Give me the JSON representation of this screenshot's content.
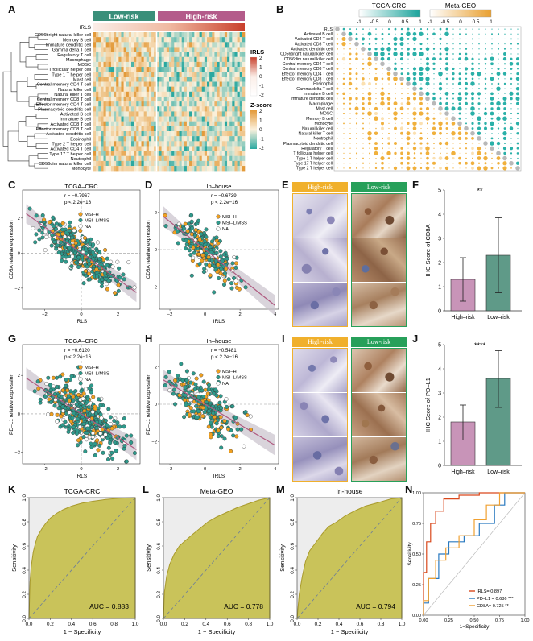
{
  "panels": [
    "A",
    "B",
    "C",
    "D",
    "E",
    "F",
    "G",
    "H",
    "I",
    "J",
    "K",
    "L",
    "M",
    "N"
  ],
  "heatmap": {
    "group_labels": [
      "Low-risk",
      "High-risk"
    ],
    "irls_row_label": "IRLS",
    "rows": [
      "CD56bright natural killer cell",
      "Memory B cell",
      "Immature dendritic cell",
      "Gamma delta T cell",
      "Regulatory T cell",
      "Macrophage",
      "MDSC",
      "T follicular helper cell",
      "Type 1 T helper cell",
      "Mast cell",
      "Central memory CD4 T cell",
      "Natural killer cell",
      "Natural killer T cell",
      "Central memory CD8 T cell",
      "Effector memory CD4 T cell",
      "Plasmacytoid dendritic cell",
      "Activated B cell",
      "Immature B cell",
      "Activated CD8 T cell",
      "Effector memory CD8 T cell",
      "Activated dendritic cell",
      "Eosinophil",
      "Type 2 T helper cell",
      "Activated CD4 T cell",
      "Type 17 T helper cell",
      "Neutrophil",
      "CD56dim natural killer cell",
      "Monocyte"
    ],
    "legend_irls": {
      "title": "IRLS",
      "ticks": [
        "2",
        "1",
        "0",
        "-1",
        "-2"
      ]
    },
    "legend_z": {
      "title": "Z-score",
      "ticks": [
        "2",
        "1",
        "0",
        "-1",
        "-2"
      ]
    },
    "colors": {
      "low": "#2aa8a0",
      "high": "#e07b2c",
      "low_group": "#3a8f7a",
      "high_group": "#b45b8a"
    }
  },
  "corrplot": {
    "legend_titles": [
      "TCGA-CRC",
      "Meta-GEO"
    ],
    "legend_ticks_tcga": [
      "-1",
      "-0.5",
      "0",
      "0.5",
      "1"
    ],
    "legend_ticks_geo": [
      "-1",
      "-0.5",
      "0",
      "0.5",
      "1"
    ],
    "rows": [
      "IRLS",
      "Activated B cell",
      "Activated CD4 T cell",
      "Activated CD8 T cell",
      "Activated dendritic cell",
      "CD56bright natural killer cell",
      "CD56dim natural killer cell",
      "Central memory CD4 T cell",
      "Central memory CD8 T cell",
      "Effector memory CD4 T cell",
      "Effector memory CD8 T cell",
      "Eosinophil",
      "Gamma delta T cell",
      "Immature  B cell",
      "Immature dendritic cell",
      "Macrophage",
      "Mast cell",
      "MDSC",
      "Memory B cell",
      "Monocyte",
      "Natural killer cell",
      "Natural killer T cell",
      "Neutrophil",
      "Plasmacytoid dendritic cell",
      "Regulatory T cell",
      "T follicular helper cell",
      "Type 1 T helper cell",
      "Type 17 T helper cell",
      "Type 2 T helper cell"
    ],
    "colors": {
      "tcga": "#2ab0a8",
      "geo": "#f0b03c",
      "diag": "#b8b8b8"
    }
  },
  "scatter_C": {
    "title": "TCGA–CRC",
    "r_text": "r = −0.7967",
    "p_text": "p < 2.2e−16",
    "xlabel": "IRLS",
    "ylabel": "CD8A relative expression",
    "legend": [
      "MSI–H",
      "MSI–L/MSS",
      "NA"
    ]
  },
  "scatter_D": {
    "title": "In–house",
    "r_text": "r = −0.6739",
    "p_text": "p < 2.2e−16",
    "xlabel": "IRLS",
    "ylabel": "CD8A relative expression",
    "legend": [
      "MSI–H",
      "MSI–L/MSS",
      "NA"
    ]
  },
  "scatter_G": {
    "title": "TCGA–CRC",
    "r_text": "r = −0.6120",
    "p_text": "p < 2.2e−16",
    "xlabel": "IRLS",
    "ylabel": "PD–L1 relative expression",
    "legend": [
      "MSI–H",
      "MSI–L/MSS",
      "NA"
    ]
  },
  "scatter_H": {
    "title": "In–house",
    "r_text": "r = −0.5481",
    "p_text": "p < 2.2e−16",
    "xlabel": "IRLS",
    "ylabel": "PD–L1 relative expression",
    "legend": [
      "MSI–H",
      "MSI–L/MSS",
      "NA"
    ]
  },
  "ihc_E": {
    "labels": [
      "High-risk",
      "Low-risk"
    ]
  },
  "ihc_I": {
    "labels": [
      "High-risk",
      "Low-risk"
    ]
  },
  "chart_data": [
    {
      "panel": "F",
      "type": "bar",
      "categories": [
        "High–risk",
        "Low–risk"
      ],
      "values": [
        1.3,
        2.3
      ],
      "error_high": [
        2.2,
        3.85
      ],
      "error_low": [
        0.4,
        0.75
      ],
      "ylabel": "IHC Score of CD8A",
      "ylim": [
        0,
        5
      ],
      "yticks": [
        "0",
        "1",
        "2",
        "3",
        "4",
        "5"
      ],
      "significance": "**",
      "colors": [
        "#c894b8",
        "#5f9a88"
      ]
    },
    {
      "panel": "J",
      "type": "bar",
      "categories": [
        "High–risk",
        "Low–risk"
      ],
      "values": [
        1.8,
        3.6
      ],
      "error_high": [
        2.5,
        4.75
      ],
      "error_low": [
        1.05,
        2.4
      ],
      "ylabel": "IHC Score of PD–L1",
      "ylim": [
        0,
        5
      ],
      "yticks": [
        "0",
        "1",
        "2",
        "3",
        "4",
        "5"
      ],
      "significance": "****",
      "colors": [
        "#c894b8",
        "#5f9a88"
      ]
    },
    {
      "panel": "K",
      "type": "area",
      "title": "TCGA-CRC",
      "xlabel": "1 − Specificity",
      "ylabel": "Sensitivity",
      "auc_text": "AUC = 0.883",
      "x": [
        0,
        0.01,
        0.02,
        0.04,
        0.06,
        0.08,
        0.12,
        0.16,
        0.2,
        0.26,
        0.32,
        0.4,
        0.5,
        0.6,
        0.72,
        0.85,
        1
      ],
      "y": [
        0,
        0.3,
        0.42,
        0.55,
        0.62,
        0.68,
        0.74,
        0.79,
        0.83,
        0.87,
        0.9,
        0.93,
        0.955,
        0.97,
        0.985,
        0.995,
        1
      ],
      "xticks": [
        "0.0",
        "0.2",
        "0.4",
        "0.6",
        "0.8",
        "1.0"
      ],
      "yticks": [
        "0.0",
        "0.2",
        "0.4",
        "0.6",
        "0.8",
        "1.0"
      ]
    },
    {
      "panel": "L",
      "type": "area",
      "title": "Meta-GEO",
      "xlabel": "1 − Specificity",
      "ylabel": "Sensitivity",
      "auc_text": "AUC = 0.778",
      "x": [
        0,
        0.01,
        0.03,
        0.06,
        0.1,
        0.15,
        0.2,
        0.28,
        0.35,
        0.42,
        0.5,
        0.6,
        0.7,
        0.8,
        0.9,
        1
      ],
      "y": [
        0,
        0.22,
        0.35,
        0.45,
        0.53,
        0.6,
        0.64,
        0.7,
        0.75,
        0.8,
        0.84,
        0.88,
        0.92,
        0.95,
        0.98,
        1
      ],
      "xticks": [
        "0.0",
        "0.2",
        "0.4",
        "0.6",
        "0.8",
        "1.0"
      ],
      "yticks": [
        "0.0",
        "0.2",
        "0.4",
        "0.6",
        "0.8",
        "1.0"
      ]
    },
    {
      "panel": "M",
      "type": "area",
      "title": "In-house",
      "xlabel": "1 − Specificity",
      "ylabel": "Sensitivity",
      "auc_text": "AUC = 0.794",
      "x": [
        0,
        0.02,
        0.05,
        0.08,
        0.12,
        0.18,
        0.24,
        0.3,
        0.38,
        0.46,
        0.55,
        0.65,
        0.78,
        0.9,
        1
      ],
      "y": [
        0,
        0.2,
        0.35,
        0.47,
        0.56,
        0.63,
        0.7,
        0.76,
        0.8,
        0.85,
        0.89,
        0.93,
        0.96,
        0.99,
        1
      ],
      "xticks": [
        "0.0",
        "0.2",
        "0.4",
        "0.6",
        "0.8",
        "1.0"
      ],
      "yticks": [
        "0.0",
        "0.2",
        "0.4",
        "0.6",
        "0.8",
        "1.0"
      ]
    },
    {
      "panel": "N",
      "type": "line",
      "xlabel": "1−Specificity",
      "ylabel": "Sensitivity",
      "xticks": [
        "0.00",
        "0.25",
        "0.50",
        "0.75",
        "1.00"
      ],
      "yticks": [
        "0.00",
        "0.25",
        "0.50",
        "0.75",
        "1.00"
      ],
      "series": [
        {
          "name": "IRLS= 0.897",
          "color": "#d9481c",
          "x": [
            0,
            0,
            0.03,
            0.03,
            0.07,
            0.07,
            0.12,
            0.12,
            0.2,
            0.2,
            0.35,
            0.35,
            0.55,
            0.55,
            1
          ],
          "y": [
            0,
            0.35,
            0.35,
            0.6,
            0.6,
            0.75,
            0.75,
            0.85,
            0.85,
            0.95,
            0.95,
            0.98,
            0.98,
            1,
            1
          ]
        },
        {
          "name": "PD–L1 = 0.686 ***",
          "color": "#2a7ac0",
          "x": [
            0,
            0,
            0.05,
            0.05,
            0.15,
            0.15,
            0.25,
            0.25,
            0.4,
            0.4,
            0.55,
            0.55,
            0.7,
            0.7,
            0.8,
            0.8,
            1
          ],
          "y": [
            0,
            0.1,
            0.1,
            0.3,
            0.3,
            0.5,
            0.5,
            0.6,
            0.6,
            0.65,
            0.65,
            0.75,
            0.75,
            0.9,
            0.9,
            1,
            1
          ]
        },
        {
          "name": "CD8A= 0.725 **",
          "color": "#f0a030",
          "x": [
            0,
            0,
            0.05,
            0.05,
            0.12,
            0.12,
            0.22,
            0.22,
            0.35,
            0.35,
            0.5,
            0.5,
            0.62,
            0.62,
            0.75,
            0.75,
            1
          ],
          "y": [
            0,
            0.12,
            0.12,
            0.3,
            0.3,
            0.45,
            0.45,
            0.55,
            0.55,
            0.65,
            0.65,
            0.78,
            0.78,
            0.9,
            0.9,
            1,
            1
          ]
        }
      ]
    }
  ]
}
